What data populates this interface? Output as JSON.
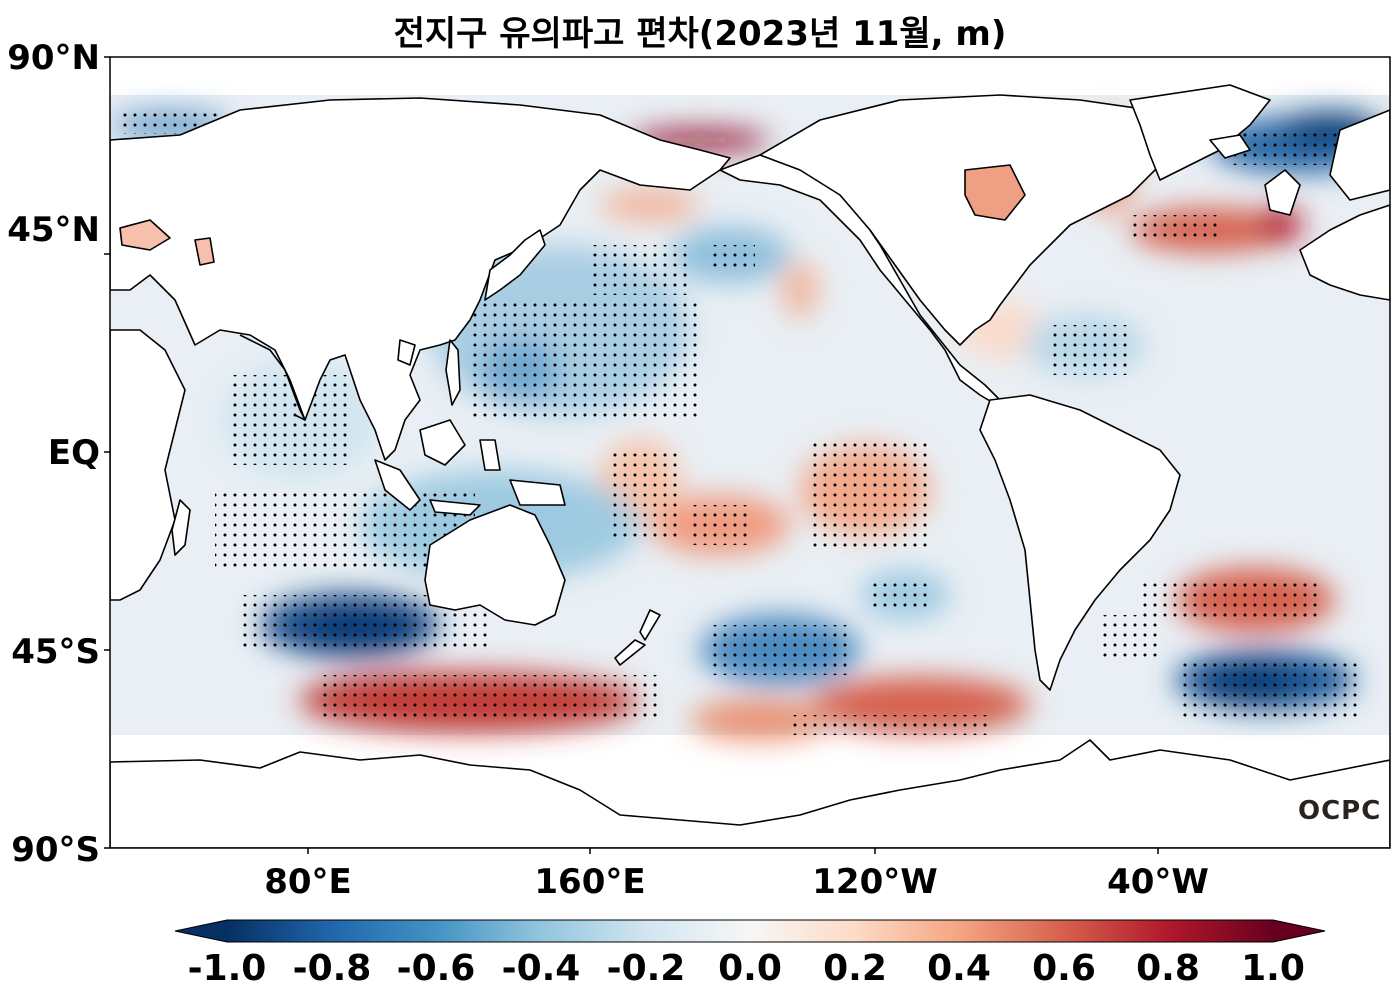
{
  "title": "전지구 유의파고 편차(2023년 11월, m)",
  "logo": "OCPC",
  "y_axis_labels": [
    "90°N",
    "45°N",
    "EQ",
    "45°S",
    "90°S"
  ],
  "x_axis_labels": [
    "80°E",
    "160°E",
    "120°W",
    "40°W"
  ],
  "colorbar": {
    "min": -1.0,
    "max": 1.0,
    "extend": "both",
    "colormap": "RdBu_r",
    "tick_labels": [
      "-1.0",
      "-0.8",
      "-0.6",
      "-0.4",
      "-0.2",
      "0.0",
      "0.2",
      "0.4",
      "0.6",
      "0.8",
      "1.0"
    ],
    "colors": [
      "#053061",
      "#2166ac",
      "#4393c3",
      "#92c5de",
      "#d1e5f0",
      "#f7f7f7",
      "#fddbc7",
      "#f4a582",
      "#d6604d",
      "#b2182b",
      "#67001f"
    ]
  }
}
